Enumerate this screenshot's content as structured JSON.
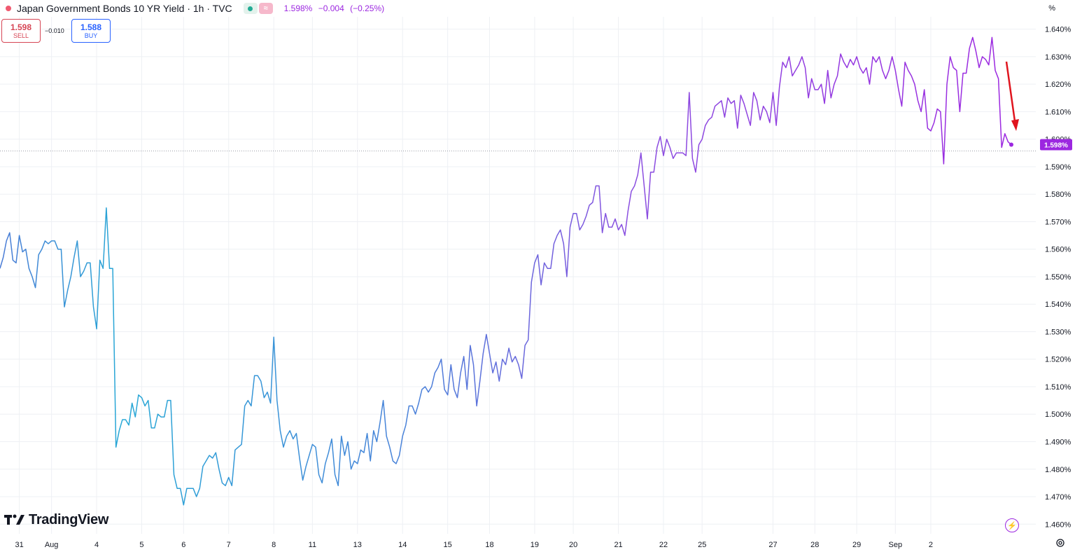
{
  "header": {
    "title": "Japan Government Bonds 10 YR Yield · 1h · TVC",
    "pill_secondary_glyph": "≈",
    "last": "1.598%",
    "change": "−0.004",
    "change_pct": "(−0.25%)",
    "unit": "%"
  },
  "trade": {
    "sell_price": "1.598",
    "sell_label": "SELL",
    "spread": "−0.010",
    "buy_price": "1.588",
    "buy_label": "BUY"
  },
  "brand": {
    "name": "TradingView"
  },
  "colors": {
    "line_start": "#27a8d6",
    "line_end": "#9c27e0",
    "price_tag": "#9c27e0",
    "arrow": "#e0141e",
    "sell": "#d64554",
    "buy": "#2962ff",
    "grid": "#eef0f4"
  },
  "chart_data": {
    "type": "line",
    "title": "Japan Government Bonds 10 YR Yield",
    "interval": "1h",
    "source": "TVC",
    "y_unit": "%",
    "ylim": [
      1.4565,
      1.6445
    ],
    "y_ticks": [
      "1.460%",
      "1.470%",
      "1.480%",
      "1.490%",
      "1.500%",
      "1.510%",
      "1.520%",
      "1.530%",
      "1.540%",
      "1.550%",
      "1.560%",
      "1.570%",
      "1.580%",
      "1.590%",
      "1.600%",
      "1.610%",
      "1.620%",
      "1.630%",
      "1.640%"
    ],
    "x_ticks": [
      {
        "label": "31",
        "index": 6
      },
      {
        "label": "Aug",
        "index": 16
      },
      {
        "label": "4",
        "index": 30
      },
      {
        "label": "5",
        "index": 44
      },
      {
        "label": "6",
        "index": 57
      },
      {
        "label": "7",
        "index": 71
      },
      {
        "label": "8",
        "index": 85
      },
      {
        "label": "11",
        "index": 97
      },
      {
        "label": "13",
        "index": 111
      },
      {
        "label": "14",
        "index": 125
      },
      {
        "label": "15",
        "index": 139
      },
      {
        "label": "18",
        "index": 152
      },
      {
        "label": "19",
        "index": 166
      },
      {
        "label": "20",
        "index": 178
      },
      {
        "label": "21",
        "index": 192
      },
      {
        "label": "22",
        "index": 206
      },
      {
        "label": "25",
        "index": 218
      },
      {
        "label": "27",
        "index": 240
      },
      {
        "label": "28",
        "index": 253
      },
      {
        "label": "29",
        "index": 266
      },
      {
        "label": "Sep",
        "index": 278
      },
      {
        "label": "2",
        "index": 289
      }
    ],
    "last_value_label": "1.598%",
    "last_value": 1.598,
    "values": [
      1.553,
      1.557,
      1.563,
      1.566,
      1.556,
      1.555,
      1.565,
      1.559,
      1.56,
      1.553,
      1.55,
      1.546,
      1.558,
      1.56,
      1.563,
      1.562,
      1.563,
      1.563,
      1.56,
      1.56,
      1.539,
      1.545,
      1.55,
      1.557,
      1.563,
      1.55,
      1.552,
      1.555,
      1.555,
      1.539,
      1.531,
      1.556,
      1.553,
      1.575,
      1.553,
      1.553,
      1.488,
      1.494,
      1.498,
      1.498,
      1.496,
      1.504,
      1.499,
      1.507,
      1.506,
      1.503,
      1.505,
      1.495,
      1.495,
      1.5,
      1.499,
      1.499,
      1.505,
      1.505,
      1.478,
      1.473,
      1.473,
      1.467,
      1.473,
      1.473,
      1.473,
      1.47,
      1.473,
      1.481,
      1.483,
      1.485,
      1.484,
      1.486,
      1.48,
      1.475,
      1.474,
      1.477,
      1.474,
      1.487,
      1.488,
      1.489,
      1.503,
      1.505,
      1.503,
      1.514,
      1.514,
      1.512,
      1.506,
      1.508,
      1.504,
      1.528,
      1.505,
      1.494,
      1.488,
      1.492,
      1.494,
      1.491,
      1.493,
      1.484,
      1.476,
      1.481,
      1.485,
      1.489,
      1.488,
      1.478,
      1.475,
      1.482,
      1.486,
      1.491,
      1.478,
      1.474,
      1.492,
      1.485,
      1.49,
      1.48,
      1.483,
      1.482,
      1.487,
      1.486,
      1.493,
      1.483,
      1.494,
      1.49,
      1.497,
      1.505,
      1.492,
      1.488,
      1.483,
      1.482,
      1.485,
      1.492,
      1.496,
      1.503,
      1.503,
      1.5,
      1.504,
      1.509,
      1.51,
      1.508,
      1.51,
      1.515,
      1.517,
      1.52,
      1.509,
      1.507,
      1.518,
      1.509,
      1.506,
      1.515,
      1.521,
      1.509,
      1.525,
      1.518,
      1.503,
      1.512,
      1.522,
      1.529,
      1.522,
      1.515,
      1.519,
      1.512,
      1.52,
      1.518,
      1.524,
      1.519,
      1.521,
      1.518,
      1.513,
      1.525,
      1.527,
      1.548,
      1.555,
      1.558,
      1.547,
      1.555,
      1.553,
      1.553,
      1.562,
      1.565,
      1.567,
      1.562,
      1.55,
      1.568,
      1.573,
      1.573,
      1.567,
      1.569,
      1.572,
      1.576,
      1.577,
      1.583,
      1.583,
      1.566,
      1.573,
      1.568,
      1.568,
      1.571,
      1.567,
      1.569,
      1.565,
      1.574,
      1.581,
      1.583,
      1.587,
      1.595,
      1.583,
      1.571,
      1.588,
      1.588,
      1.597,
      1.601,
      1.594,
      1.6,
      1.597,
      1.593,
      1.595,
      1.595,
      1.595,
      1.594,
      1.617,
      1.593,
      1.588,
      1.598,
      1.6,
      1.605,
      1.607,
      1.608,
      1.612,
      1.613,
      1.614,
      1.608,
      1.615,
      1.613,
      1.614,
      1.604,
      1.616,
      1.613,
      1.609,
      1.605,
      1.617,
      1.614,
      1.607,
      1.612,
      1.61,
      1.606,
      1.617,
      1.605,
      1.619,
      1.628,
      1.626,
      1.63,
      1.623,
      1.625,
      1.627,
      1.63,
      1.626,
      1.615,
      1.622,
      1.618,
      1.618,
      1.62,
      1.613,
      1.625,
      1.615,
      1.62,
      1.623,
      1.631,
      1.628,
      1.626,
      1.629,
      1.627,
      1.63,
      1.626,
      1.624,
      1.626,
      1.62,
      1.63,
      1.628,
      1.63,
      1.625,
      1.622,
      1.625,
      1.63,
      1.625,
      1.618,
      1.612,
      1.628,
      1.625,
      1.623,
      1.62,
      1.614,
      1.61,
      1.618,
      1.604,
      1.603,
      1.606,
      1.611,
      1.61,
      1.591,
      1.62,
      1.63,
      1.626,
      1.625,
      1.61,
      1.624,
      1.624,
      1.633,
      1.637,
      1.632,
      1.626,
      1.63,
      1.629,
      1.627,
      1.637,
      1.625,
      1.622,
      1.597,
      1.602,
      1.599,
      1.598
    ]
  }
}
